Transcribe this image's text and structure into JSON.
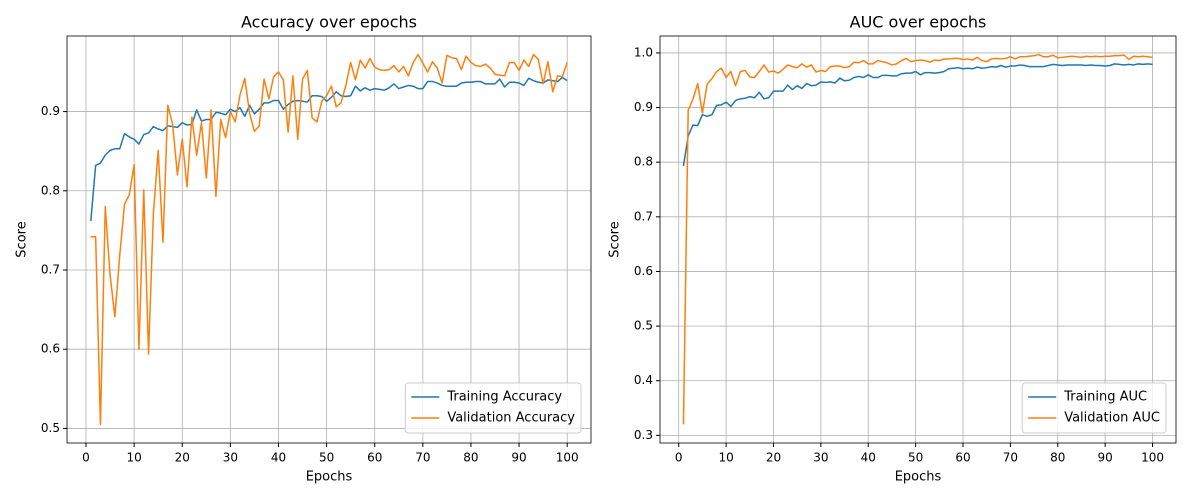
{
  "chart_data": [
    {
      "type": "line",
      "title": "Accuracy over epochs",
      "x_label": "Epochs",
      "y_label": "Score",
      "x": [
        1,
        2,
        3,
        4,
        5,
        6,
        7,
        8,
        9,
        10,
        11,
        12,
        13,
        14,
        15,
        16,
        17,
        18,
        19,
        20,
        21,
        22,
        23,
        24,
        25,
        26,
        27,
        28,
        29,
        30,
        31,
        32,
        33,
        34,
        35,
        36,
        37,
        38,
        39,
        40,
        41,
        42,
        43,
        44,
        45,
        46,
        47,
        48,
        49,
        50,
        51,
        52,
        53,
        54,
        55,
        56,
        57,
        58,
        59,
        60,
        61,
        62,
        63,
        64,
        65,
        66,
        67,
        68,
        69,
        70,
        71,
        72,
        73,
        74,
        75,
        76,
        77,
        78,
        79,
        80,
        81,
        82,
        83,
        84,
        85,
        86,
        87,
        88,
        89,
        90,
        91,
        92,
        93,
        94,
        95,
        96,
        97,
        98,
        99,
        100
      ],
      "series": [
        {
          "name": "Training Accuracy",
          "color": "#1f77b4",
          "values": [
            0.762,
            0.832,
            0.835,
            0.845,
            0.851,
            0.853,
            0.853,
            0.872,
            0.868,
            0.865,
            0.859,
            0.871,
            0.873,
            0.881,
            0.878,
            0.876,
            0.882,
            0.881,
            0.88,
            0.886,
            0.883,
            0.884,
            0.902,
            0.888,
            0.89,
            0.89,
            0.899,
            0.898,
            0.896,
            0.903,
            0.9,
            0.905,
            0.894,
            0.908,
            0.897,
            0.903,
            0.911,
            0.911,
            0.914,
            0.914,
            0.903,
            0.909,
            0.913,
            0.914,
            0.913,
            0.912,
            0.92,
            0.92,
            0.919,
            0.913,
            0.918,
            0.925,
            0.92,
            0.919,
            0.92,
            0.932,
            0.926,
            0.93,
            0.927,
            0.929,
            0.928,
            0.927,
            0.93,
            0.935,
            0.929,
            0.931,
            0.933,
            0.932,
            0.929,
            0.929,
            0.938,
            0.938,
            0.936,
            0.933,
            0.932,
            0.932,
            0.932,
            0.936,
            0.937,
            0.937,
            0.938,
            0.938,
            0.935,
            0.935,
            0.935,
            0.941,
            0.931,
            0.937,
            0.937,
            0.936,
            0.933,
            0.942,
            0.939,
            0.937,
            0.936,
            0.94,
            0.939,
            0.938,
            0.943,
            0.939
          ]
        },
        {
          "name": "Validation Accuracy",
          "color": "#ff7f0e",
          "values": [
            0.742,
            0.742,
            0.505,
            0.78,
            0.694,
            0.641,
            0.718,
            0.783,
            0.795,
            0.833,
            0.6,
            0.801,
            0.594,
            0.771,
            0.851,
            0.735,
            0.908,
            0.884,
            0.82,
            0.865,
            0.805,
            0.893,
            0.845,
            0.886,
            0.816,
            0.902,
            0.793,
            0.89,
            0.867,
            0.9,
            0.887,
            0.921,
            0.942,
            0.898,
            0.875,
            0.882,
            0.941,
            0.916,
            0.944,
            0.95,
            0.94,
            0.874,
            0.945,
            0.865,
            0.941,
            0.952,
            0.892,
            0.887,
            0.913,
            0.92,
            0.932,
            0.906,
            0.911,
            0.933,
            0.962,
            0.94,
            0.965,
            0.955,
            0.967,
            0.956,
            0.953,
            0.952,
            0.953,
            0.958,
            0.95,
            0.957,
            0.945,
            0.962,
            0.972,
            0.961,
            0.95,
            0.963,
            0.955,
            0.936,
            0.971,
            0.968,
            0.967,
            0.953,
            0.97,
            0.962,
            0.958,
            0.957,
            0.96,
            0.955,
            0.947,
            0.946,
            0.945,
            0.962,
            0.962,
            0.952,
            0.965,
            0.957,
            0.972,
            0.966,
            0.935,
            0.963,
            0.925,
            0.945,
            0.944,
            0.962
          ]
        }
      ],
      "xlim": [
        -3.95,
        104.95
      ],
      "xticks": [
        0,
        10,
        20,
        30,
        40,
        50,
        60,
        70,
        80,
        90,
        100
      ],
      "ylim": [
        0.4816,
        0.9954
      ],
      "yticks": [
        0.5,
        0.6,
        0.7,
        0.8,
        0.9
      ],
      "grid": true,
      "legend": "lower right"
    },
    {
      "type": "line",
      "title": "AUC over epochs",
      "x_label": "Epochs",
      "y_label": "Score",
      "x": [
        1,
        2,
        3,
        4,
        5,
        6,
        7,
        8,
        9,
        10,
        11,
        12,
        13,
        14,
        15,
        16,
        17,
        18,
        19,
        20,
        21,
        22,
        23,
        24,
        25,
        26,
        27,
        28,
        29,
        30,
        31,
        32,
        33,
        34,
        35,
        36,
        37,
        38,
        39,
        40,
        41,
        42,
        43,
        44,
        45,
        46,
        47,
        48,
        49,
        50,
        51,
        52,
        53,
        54,
        55,
        56,
        57,
        58,
        59,
        60,
        61,
        62,
        63,
        64,
        65,
        66,
        67,
        68,
        69,
        70,
        71,
        72,
        73,
        74,
        75,
        76,
        77,
        78,
        79,
        80,
        81,
        82,
        83,
        84,
        85,
        86,
        87,
        88,
        89,
        90,
        91,
        92,
        93,
        94,
        95,
        96,
        97,
        98,
        99,
        100
      ],
      "series": [
        {
          "name": "Training AUC",
          "color": "#1f77b4",
          "values": [
            0.793,
            0.848,
            0.868,
            0.867,
            0.887,
            0.884,
            0.887,
            0.904,
            0.905,
            0.91,
            0.902,
            0.913,
            0.916,
            0.917,
            0.92,
            0.918,
            0.928,
            0.916,
            0.918,
            0.93,
            0.93,
            0.93,
            0.941,
            0.933,
            0.94,
            0.935,
            0.944,
            0.94,
            0.941,
            0.947,
            0.946,
            0.947,
            0.945,
            0.954,
            0.949,
            0.95,
            0.955,
            0.957,
            0.955,
            0.96,
            0.955,
            0.955,
            0.959,
            0.959,
            0.958,
            0.958,
            0.962,
            0.963,
            0.963,
            0.966,
            0.96,
            0.964,
            0.964,
            0.963,
            0.964,
            0.966,
            0.971,
            0.972,
            0.973,
            0.971,
            0.972,
            0.971,
            0.974,
            0.972,
            0.973,
            0.975,
            0.974,
            0.977,
            0.974,
            0.976,
            0.976,
            0.978,
            0.977,
            0.975,
            0.975,
            0.975,
            0.975,
            0.977,
            0.979,
            0.978,
            0.977,
            0.978,
            0.978,
            0.978,
            0.978,
            0.977,
            0.978,
            0.977,
            0.977,
            0.976,
            0.977,
            0.98,
            0.979,
            0.978,
            0.979,
            0.978,
            0.98,
            0.979,
            0.98,
            0.979
          ]
        },
        {
          "name": "Validation AUC",
          "color": "#ff7f0e",
          "values": [
            0.32,
            0.895,
            0.915,
            0.944,
            0.89,
            0.943,
            0.953,
            0.966,
            0.972,
            0.955,
            0.966,
            0.94,
            0.966,
            0.968,
            0.956,
            0.955,
            0.966,
            0.978,
            0.965,
            0.967,
            0.963,
            0.97,
            0.978,
            0.975,
            0.973,
            0.98,
            0.974,
            0.978,
            0.965,
            0.968,
            0.966,
            0.975,
            0.976,
            0.976,
            0.973,
            0.975,
            0.983,
            0.982,
            0.986,
            0.98,
            0.98,
            0.986,
            0.984,
            0.982,
            0.978,
            0.98,
            0.986,
            0.99,
            0.984,
            0.986,
            0.987,
            0.986,
            0.983,
            0.987,
            0.986,
            0.989,
            0.989,
            0.99,
            0.99,
            0.988,
            0.989,
            0.987,
            0.992,
            0.986,
            0.984,
            0.989,
            0.99,
            0.989,
            0.99,
            0.993,
            0.989,
            0.993,
            0.993,
            0.994,
            0.995,
            0.997,
            0.993,
            0.993,
            0.996,
            0.991,
            0.992,
            0.993,
            0.994,
            0.993,
            0.992,
            0.994,
            0.993,
            0.994,
            0.993,
            0.994,
            0.994,
            0.995,
            0.995,
            0.996,
            0.988,
            0.994,
            0.993,
            0.994,
            0.993,
            0.992
          ]
        }
      ],
      "xlim": [
        -3.95,
        104.95
      ],
      "xticks": [
        0,
        10,
        20,
        30,
        40,
        50,
        60,
        70,
        80,
        90,
        100
      ],
      "ylim": [
        0.286,
        1.031
      ],
      "yticks": [
        0.3,
        0.4,
        0.5,
        0.6,
        0.7,
        0.8,
        0.9,
        {
          "value": 1,
          "label": "1.0"
        }
      ],
      "grid": true,
      "legend": "lower right"
    }
  ]
}
